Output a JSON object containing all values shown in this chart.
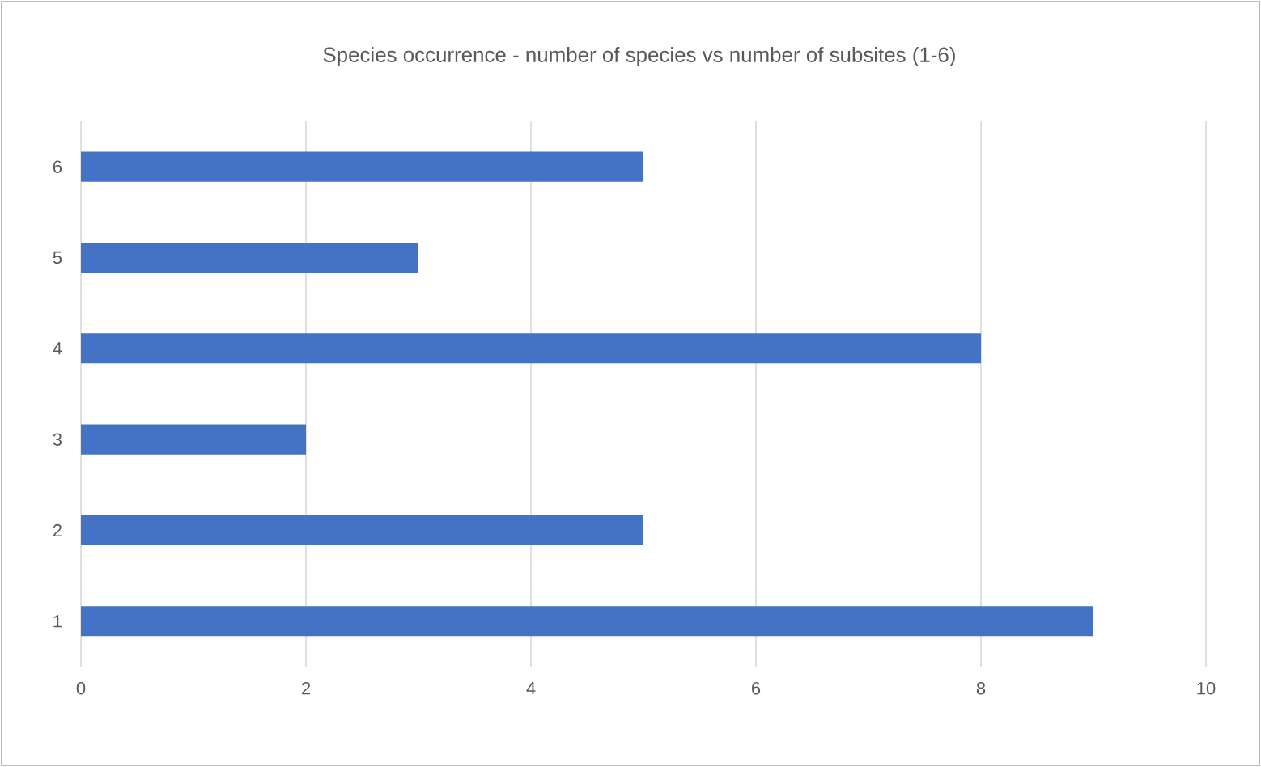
{
  "chart_data": {
    "type": "bar",
    "orientation": "horizontal",
    "title": "Species occurrence - number of species vs number of subsites (1-6)",
    "categories": [
      "6",
      "5",
      "4",
      "3",
      "2",
      "1"
    ],
    "values": [
      5,
      3,
      8,
      2,
      5,
      9
    ],
    "color": "#4472c4",
    "xlim": [
      0,
      10
    ],
    "xticks": [
      0,
      2,
      4,
      6,
      8,
      10
    ],
    "grid": "x"
  }
}
